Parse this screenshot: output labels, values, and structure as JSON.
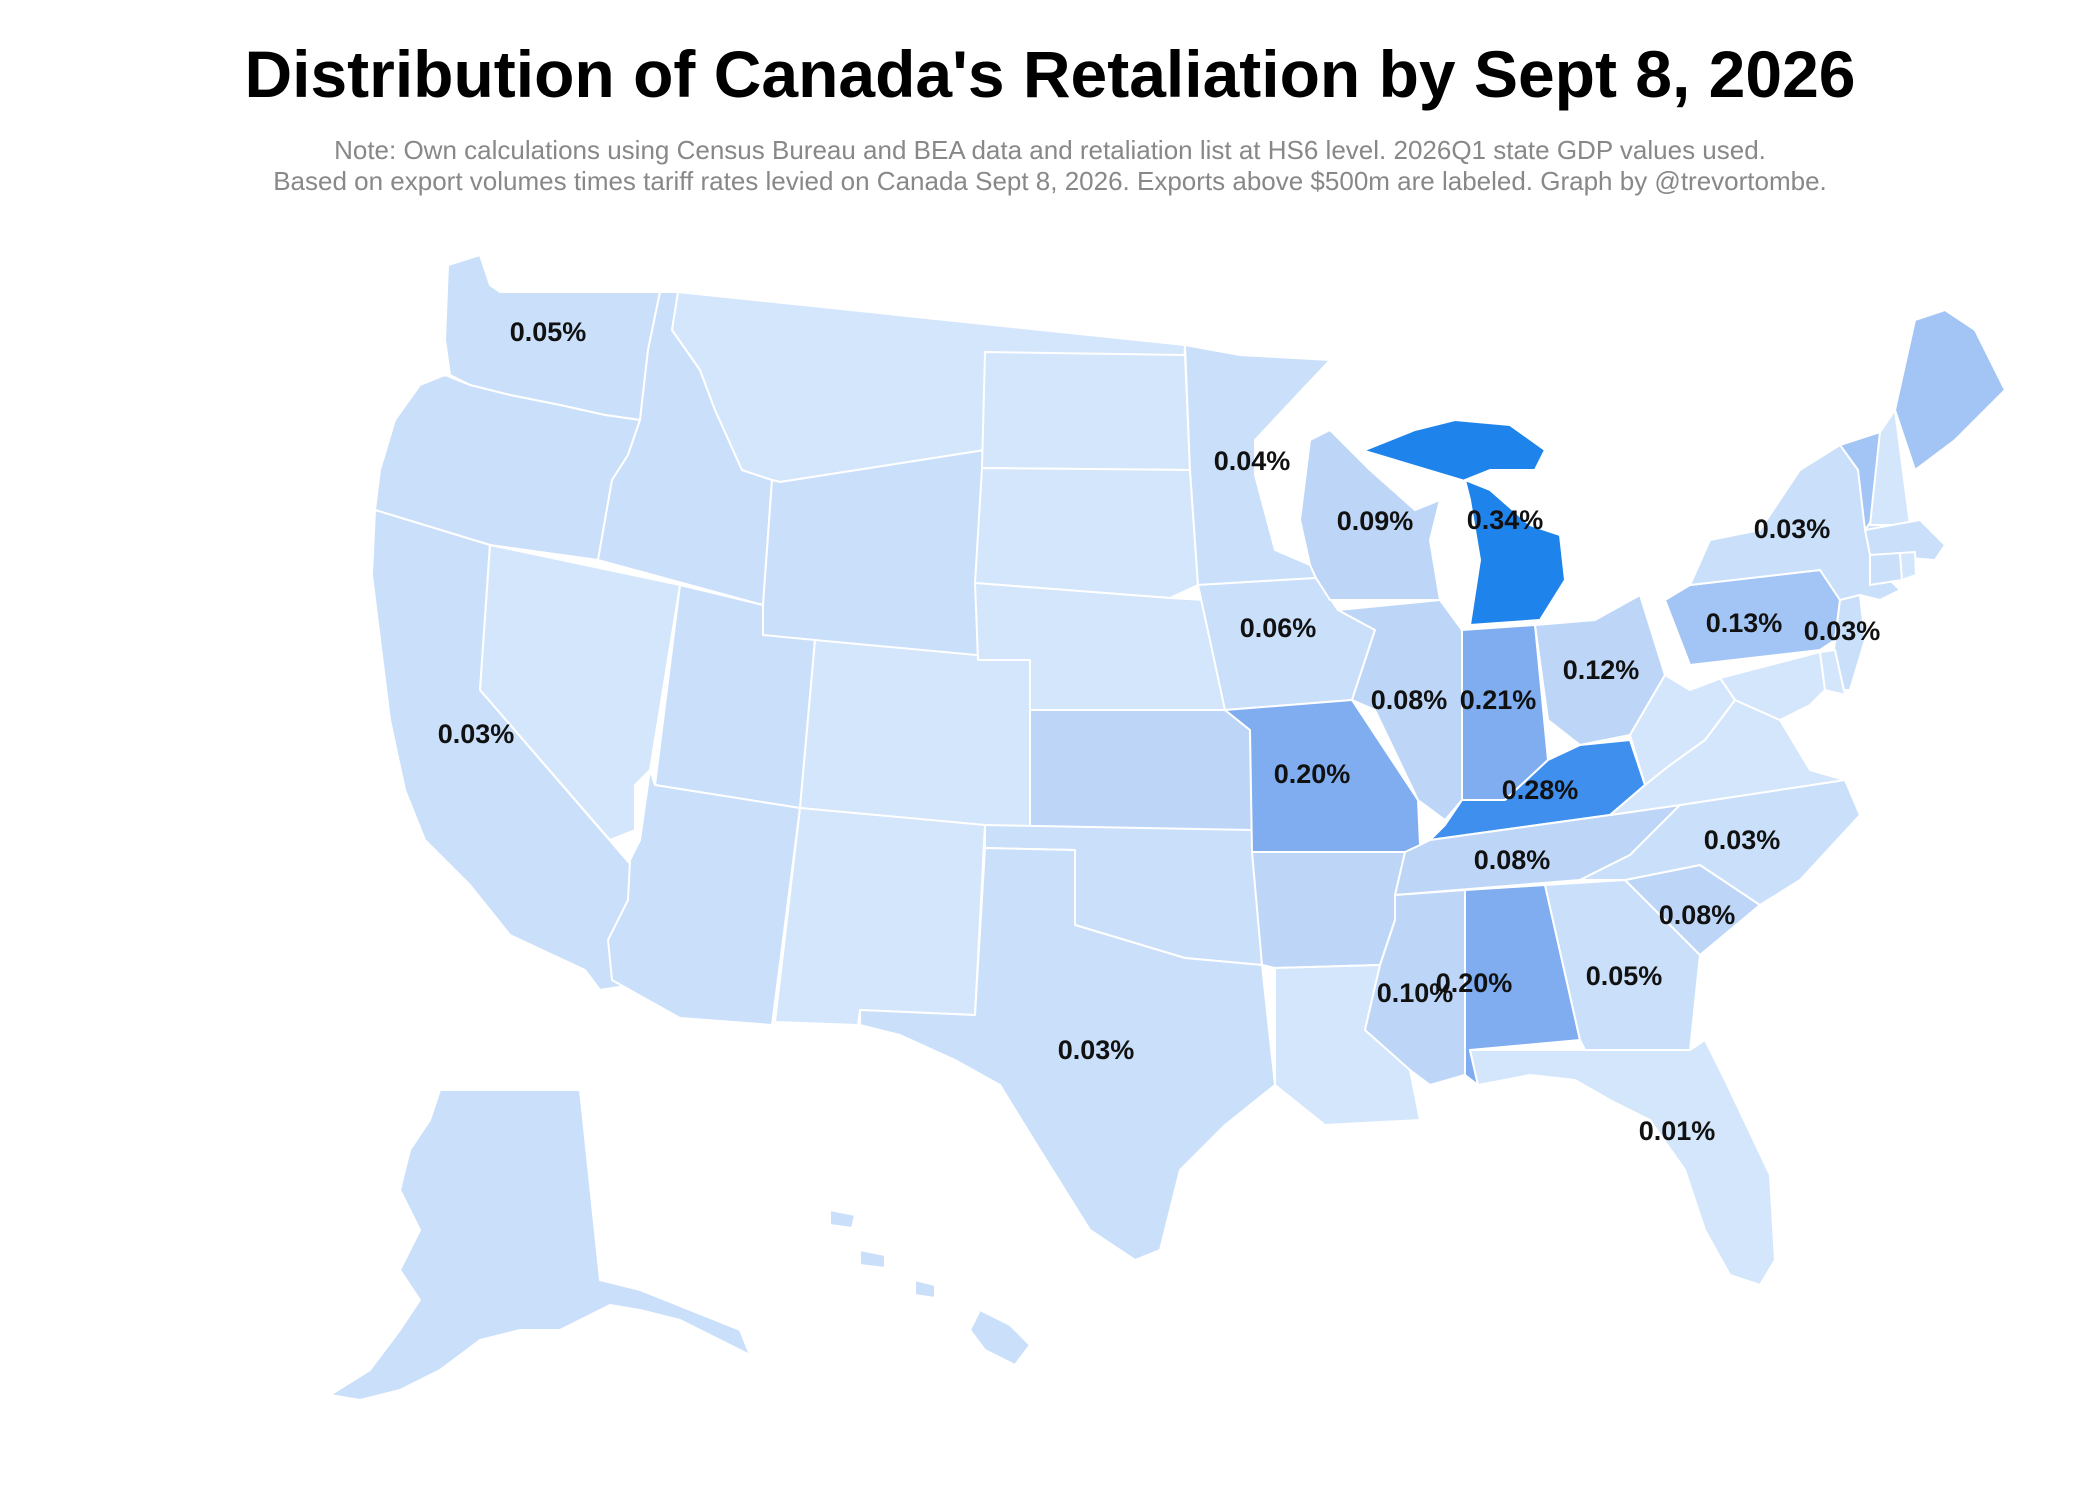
{
  "title": "Distribution of Canada's Retaliation by Sept 8, 2026",
  "note_line1": "Note: Own calculations using Census Bureau and BEA data and retaliation list at HS6 level. 2026Q1 state GDP values used.",
  "note_line2": "Based on export volumes times tariff rates levied on Canada Sept 8, 2026. Exports above $500m are labeled. Graph by @trevortombe.",
  "colors": {
    "lightest": "#d4e6fb",
    "light": "#c9dffa",
    "light_mid": "#bdd6f8",
    "mid": "#a3c5f5",
    "mid_strong": "#7fadf0",
    "strong": "#3f8fee",
    "strongest": "#1e83ea"
  },
  "states": [
    {
      "id": "WA",
      "shade": "light",
      "label": "0.05%"
    },
    {
      "id": "OR",
      "shade": "light"
    },
    {
      "id": "CA",
      "shade": "light",
      "label": "0.03%"
    },
    {
      "id": "NV",
      "shade": "lightest"
    },
    {
      "id": "ID",
      "shade": "light"
    },
    {
      "id": "MT",
      "shade": "lightest"
    },
    {
      "id": "WY",
      "shade": "light"
    },
    {
      "id": "UT",
      "shade": "light"
    },
    {
      "id": "AZ",
      "shade": "light"
    },
    {
      "id": "CO",
      "shade": "lightest"
    },
    {
      "id": "NM",
      "shade": "lightest"
    },
    {
      "id": "ND",
      "shade": "lightest"
    },
    {
      "id": "SD",
      "shade": "lightest"
    },
    {
      "id": "NE",
      "shade": "lightest"
    },
    {
      "id": "KS",
      "shade": "light_mid"
    },
    {
      "id": "OK",
      "shade": "light"
    },
    {
      "id": "TX",
      "shade": "light",
      "label": "0.03%"
    },
    {
      "id": "MN",
      "shade": "light",
      "label": "0.04%"
    },
    {
      "id": "IA",
      "shade": "light",
      "label": "0.06%"
    },
    {
      "id": "MO",
      "shade": "mid_strong",
      "label": "0.20%"
    },
    {
      "id": "AR",
      "shade": "light_mid"
    },
    {
      "id": "LA",
      "shade": "lightest"
    },
    {
      "id": "WI",
      "shade": "light_mid",
      "label": "0.09%"
    },
    {
      "id": "IL",
      "shade": "light_mid",
      "label": "0.08%"
    },
    {
      "id": "MI",
      "shade": "strongest",
      "label": "0.34%"
    },
    {
      "id": "IN",
      "shade": "mid_strong",
      "label": "0.21%"
    },
    {
      "id": "OH",
      "shade": "light_mid",
      "label": "0.12%"
    },
    {
      "id": "KY",
      "shade": "strong",
      "label": "0.28%"
    },
    {
      "id": "TN",
      "shade": "light_mid",
      "label": "0.08%"
    },
    {
      "id": "MS",
      "shade": "light_mid",
      "label": "0.10%"
    },
    {
      "id": "AL",
      "shade": "mid_strong",
      "label": "0.20%"
    },
    {
      "id": "GA",
      "shade": "light",
      "label": "0.05%"
    },
    {
      "id": "FL",
      "shade": "lightest",
      "label": "0.01%"
    },
    {
      "id": "SC",
      "shade": "light_mid",
      "label": "0.08%"
    },
    {
      "id": "NC",
      "shade": "light",
      "label": "0.03%"
    },
    {
      "id": "VA",
      "shade": "lightest"
    },
    {
      "id": "WV",
      "shade": "lightest"
    },
    {
      "id": "PA",
      "shade": "mid",
      "label": "0.13%"
    },
    {
      "id": "NY",
      "shade": "light",
      "label": "0.03%"
    },
    {
      "id": "NJ",
      "shade": "light",
      "label": "0.03%"
    },
    {
      "id": "MD",
      "shade": "lightest"
    },
    {
      "id": "DE",
      "shade": "lightest"
    },
    {
      "id": "VT",
      "shade": "mid"
    },
    {
      "id": "NH",
      "shade": "lightest"
    },
    {
      "id": "ME",
      "shade": "mid"
    },
    {
      "id": "MA",
      "shade": "light"
    },
    {
      "id": "CT",
      "shade": "light"
    },
    {
      "id": "RI",
      "shade": "lightest"
    },
    {
      "id": "AK",
      "shade": "light"
    },
    {
      "id": "HI",
      "shade": "light"
    }
  ]
}
